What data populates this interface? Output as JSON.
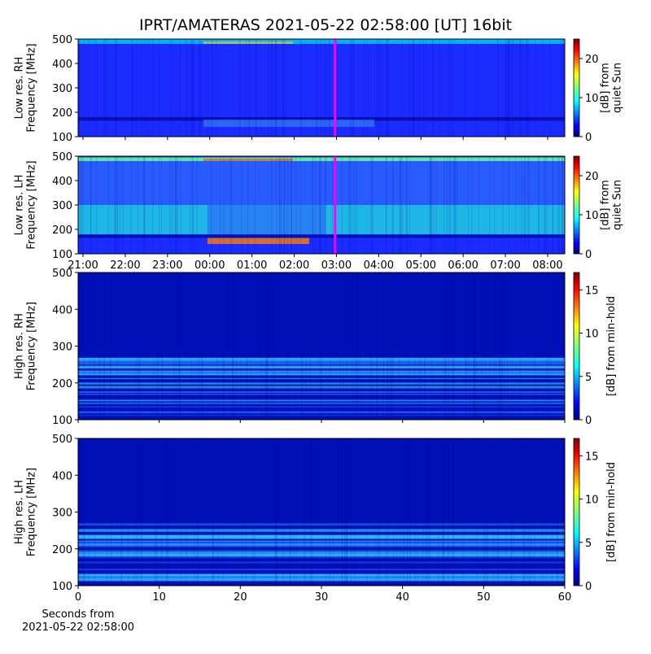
{
  "chart_data": [
    {
      "type": "heatmap",
      "title": "IPRT/AMATERAS 2021-05-22 02:58:00 [UT]   16bit",
      "ylabel": [
        "Low res. RH",
        "Frequency [MHz]"
      ],
      "ylim": [
        100,
        500
      ],
      "yticks": [
        100,
        200,
        300,
        400,
        500
      ],
      "xlim": [
        20.884,
        32.405
      ],
      "xticks": [
        21,
        22,
        23,
        24,
        25,
        26,
        27,
        28,
        29,
        30,
        31,
        32
      ],
      "show_xtick_labels": false,
      "colormap": "jet",
      "marker": {
        "x": 26.967,
        "color": "#ff00ff"
      },
      "colorbar": {
        "label": [
          "[dB] from",
          "quiet Sun"
        ],
        "lim": [
          0,
          25
        ],
        "ticks": [
          0,
          10,
          20
        ]
      }
    },
    {
      "type": "heatmap",
      "ylabel": [
        "Low res. LH",
        "Frequency [MHz]"
      ],
      "ylim": [
        100,
        500
      ],
      "yticks": [
        100,
        200,
        300,
        400,
        500
      ],
      "xlim": [
        20.884,
        32.405
      ],
      "xticks": [
        {
          "value": 21,
          "label": "21:00"
        },
        {
          "value": 22,
          "label": "22:00"
        },
        {
          "value": 23,
          "label": "23:00"
        },
        {
          "value": 24,
          "label": "00:00"
        },
        {
          "value": 25,
          "label": "01:00"
        },
        {
          "value": 26,
          "label": "02:00"
        },
        {
          "value": 27,
          "label": "03:00"
        },
        {
          "value": 28,
          "label": "04:00"
        },
        {
          "value": 29,
          "label": "05:00"
        },
        {
          "value": 30,
          "label": "06:00"
        },
        {
          "value": 31,
          "label": "07:00"
        },
        {
          "value": 32,
          "label": "08:00"
        }
      ],
      "show_xtick_labels": true,
      "colormap": "jet",
      "marker": {
        "x": 26.967,
        "color": "#ff00ff"
      },
      "colorbar": {
        "label": [
          "[dB] from",
          "quiet Sun"
        ],
        "lim": [
          0,
          25
        ],
        "ticks": [
          0,
          10,
          20
        ]
      }
    },
    {
      "type": "heatmap",
      "ylabel": [
        "High res. RH",
        "Frequency [MHz]"
      ],
      "ylim": [
        100,
        500
      ],
      "yticks": [
        100,
        200,
        300,
        400,
        500
      ],
      "xlim": [
        0,
        60
      ],
      "xticks": [
        0,
        10,
        20,
        30,
        40,
        50,
        60
      ],
      "show_xtick_labels": false,
      "colormap": "jet",
      "colorbar": {
        "label": [
          "[dB] from min-hold"
        ],
        "lim": [
          0,
          17
        ],
        "ticks": [
          0,
          5,
          10,
          15
        ]
      }
    },
    {
      "type": "heatmap",
      "ylabel": [
        "High res. LH",
        "Frequency [MHz]"
      ],
      "ylim": [
        100,
        500
      ],
      "yticks": [
        100,
        200,
        300,
        400,
        500
      ],
      "xlim": [
        0,
        60
      ],
      "xticks": [
        0,
        10,
        20,
        30,
        40,
        50,
        60
      ],
      "show_xtick_labels": true,
      "xlabel": [
        "Seconds from",
        "2021-05-22 02:58:00"
      ],
      "colormap": "jet",
      "colorbar": {
        "label": [
          "[dB] from min-hold"
        ],
        "lim": [
          0,
          17
        ],
        "ticks": [
          0,
          5,
          10,
          15
        ]
      }
    }
  ]
}
